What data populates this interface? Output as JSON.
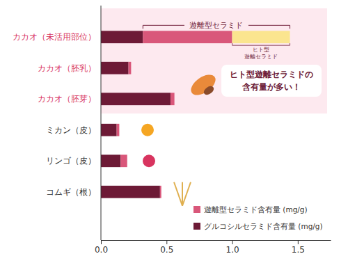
{
  "chart_data": {
    "type": "bar",
    "orientation": "horizontal",
    "stacked": true,
    "categories": [
      "カカオ（未活用部位）",
      "カカオ（胚乳）",
      "カカオ（胚芽）",
      "ミカン（皮）",
      "リンゴ（皮）",
      "コムギ（根）"
    ],
    "series": [
      {
        "name": "グルコシルセラミド含有量 (mg/g)",
        "color": "#6d1a36",
        "values": [
          0.32,
          0.21,
          0.53,
          0.12,
          0.15,
          0.45
        ]
      },
      {
        "name": "遊離型セラミド含有量 (mg/g)",
        "color": "#d9577a",
        "values": [
          0.68,
          0.02,
          0.03,
          0.02,
          0.05,
          0.01
        ]
      },
      {
        "name": "ヒト型\n遊離セラミド",
        "color": "#fbe58f",
        "values": [
          0.44,
          null,
          null,
          null,
          null,
          null
        ]
      }
    ],
    "xlim": [
      0,
      1.75
    ],
    "xticks": [
      {
        "value": 0,
        "label": "0.0"
      },
      0.5,
      {
        "value": 1,
        "label": "1.0"
      },
      1.5
    ],
    "annotations": [
      {
        "text": "遊離型セラミド"
      },
      {
        "text": "ヒト型遊離セラミドの\n含有量が多い！"
      }
    ]
  }
}
